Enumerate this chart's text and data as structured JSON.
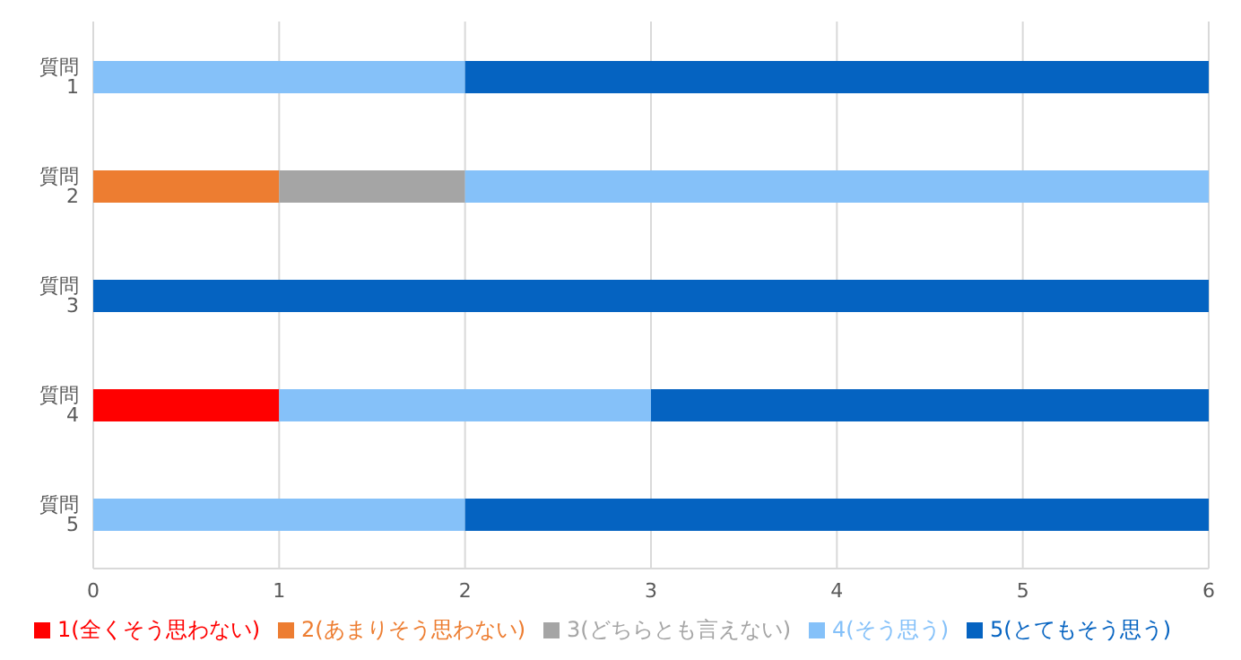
{
  "chart_data": {
    "type": "bar",
    "orientation": "horizontal",
    "stacked": true,
    "categories": [
      "質問 1",
      "質問 2",
      "質問 3",
      "質問 4",
      "質問 5"
    ],
    "series": [
      {
        "name": "1(全くそう思わない)",
        "color": "#ff0000",
        "values": [
          null,
          null,
          null,
          1,
          null
        ]
      },
      {
        "name": "2(あまりそう思わない)",
        "color": "#ed7d31",
        "values": [
          null,
          1,
          null,
          null,
          null
        ]
      },
      {
        "name": "3(どちらとも言えない)",
        "color": "#a5a5a5",
        "values": [
          null,
          1,
          null,
          null,
          null
        ]
      },
      {
        "name": "4(そう思う)",
        "color": "#85c1f9",
        "values": [
          2,
          4,
          null,
          2,
          2
        ]
      },
      {
        "name": "5(とてもそう思う)",
        "color": "#0563c1",
        "values": [
          4,
          null,
          6,
          3,
          4
        ]
      }
    ],
    "xlim": [
      0,
      6
    ],
    "xticks": [
      0,
      1,
      2,
      3,
      4,
      5,
      6
    ],
    "grid": "x",
    "legend": "bottom"
  }
}
